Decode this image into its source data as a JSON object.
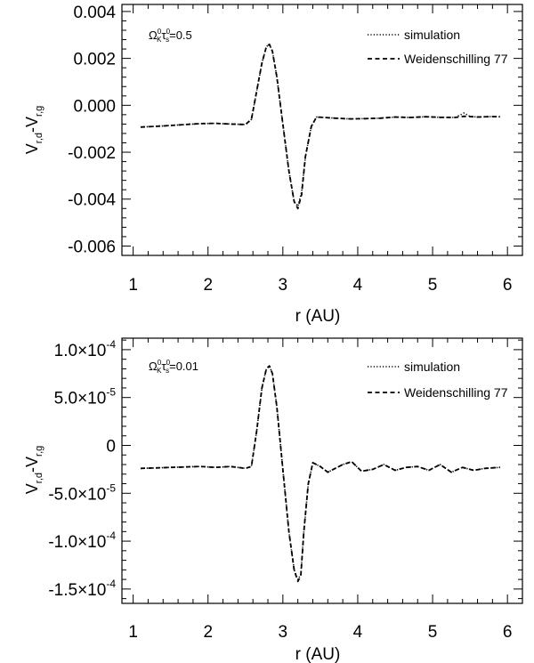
{
  "chart_data": [
    {
      "type": "line",
      "annotation": {
        "symbol_a": "Ω",
        "sup_a": "0",
        "sub_a": "K",
        "symbol_b": "τ",
        "sup_b": "0",
        "sub_b": "s",
        "value": "=0.5"
      },
      "ylabel": {
        "main_a": "V",
        "sub_a": "r,d",
        "sep": "-",
        "main_b": "V",
        "sub_b": "r,g"
      },
      "xlabel": "r (AU)",
      "xlim": [
        0.85,
        6.2
      ],
      "ylim": [
        -0.0064,
        0.0043
      ],
      "xticks": [
        1,
        2,
        3,
        4,
        5,
        6
      ],
      "xtick_labels": [
        "1",
        "2",
        "3",
        "4",
        "5",
        "6"
      ],
      "yticks": [
        -0.006,
        -0.004,
        -0.002,
        0.0,
        0.002,
        0.004
      ],
      "ytick_labels": [
        "-0.006",
        "-0.004",
        "-0.002",
        "0.000",
        "0.002",
        "0.004"
      ],
      "legend_position": "top-right",
      "series": [
        {
          "name": "simulation",
          "style": "dotted",
          "x": [
            1.1,
            1.3,
            1.5,
            1.7,
            1.9,
            2.1,
            2.3,
            2.5,
            2.58,
            2.65,
            2.72,
            2.78,
            2.82,
            2.86,
            2.92,
            3.0,
            3.08,
            3.15,
            3.2,
            3.25,
            3.3,
            3.38,
            3.45,
            3.55,
            3.7,
            3.9,
            4.1,
            4.3,
            4.5,
            4.7,
            4.9,
            5.1,
            5.3,
            5.42,
            5.5,
            5.6,
            5.8,
            5.9
          ],
          "y": [
            -0.00093,
            -0.0009,
            -0.00086,
            -0.00082,
            -0.00078,
            -0.00077,
            -0.0008,
            -0.00082,
            -0.0006,
            0.0006,
            0.0018,
            0.0025,
            0.0026,
            0.0023,
            0.0012,
            -0.0008,
            -0.0028,
            -0.0041,
            -0.0043,
            -0.0037,
            -0.0022,
            -0.0009,
            -0.0005,
            -0.00052,
            -0.00055,
            -0.00058,
            -0.00057,
            -0.00055,
            -0.0005,
            -0.00052,
            -0.00049,
            -0.00051,
            -0.00052,
            -0.00033,
            -0.00048,
            -0.0005,
            -0.00048,
            -0.00049
          ]
        },
        {
          "name": "Weidenschilling 77",
          "style": "dashed",
          "x": [
            1.1,
            1.3,
            1.5,
            1.7,
            1.9,
            2.1,
            2.3,
            2.5,
            2.58,
            2.65,
            2.72,
            2.78,
            2.82,
            2.86,
            2.92,
            3.0,
            3.08,
            3.15,
            3.2,
            3.25,
            3.3,
            3.38,
            3.45,
            3.55,
            3.7,
            3.9,
            4.1,
            4.3,
            4.5,
            4.7,
            4.9,
            5.1,
            5.3,
            5.42,
            5.5,
            5.6,
            5.8,
            5.9
          ],
          "y": [
            -0.00093,
            -0.0009,
            -0.00086,
            -0.00082,
            -0.00078,
            -0.00077,
            -0.0008,
            -0.00082,
            -0.0006,
            0.0006,
            0.0018,
            0.0025,
            0.0026,
            0.0023,
            0.0012,
            -0.0008,
            -0.0028,
            -0.0041,
            -0.0044,
            -0.0038,
            -0.0022,
            -0.0009,
            -0.0005,
            -0.00052,
            -0.00055,
            -0.00058,
            -0.00057,
            -0.00055,
            -0.0005,
            -0.00052,
            -0.00049,
            -0.00051,
            -0.00052,
            -0.00047,
            -0.00048,
            -0.0005,
            -0.00048,
            -0.00049
          ]
        }
      ]
    },
    {
      "type": "line",
      "annotation": {
        "symbol_a": "Ω",
        "sup_a": "0",
        "sub_a": "K",
        "symbol_b": "τ",
        "sup_b": "0",
        "sub_b": "s",
        "value": "=0.01"
      },
      "ylabel": {
        "main_a": "V",
        "sub_a": "r,d",
        "sep": "-",
        "main_b": "V",
        "sub_b": "r,g"
      },
      "xlabel": "r (AU)",
      "xlim": [
        0.85,
        6.2
      ],
      "ylim": [
        -0.000165,
        0.000112
      ],
      "xticks": [
        1,
        2,
        3,
        4,
        5,
        6
      ],
      "xtick_labels": [
        "1",
        "2",
        "3",
        "4",
        "5",
        "6"
      ],
      "yticks": [
        -0.00015,
        -0.0001,
        -5e-05,
        0,
        5e-05,
        0.0001
      ],
      "ytick_labels": [
        {
          "mant": "-1.5×10",
          "exp": "-4"
        },
        {
          "mant": "-1.0×10",
          "exp": "-4"
        },
        {
          "mant": "-5.0×10",
          "exp": "-5"
        },
        {
          "mant": "0",
          "exp": ""
        },
        {
          "mant": "5.0×10",
          "exp": "-5"
        },
        {
          "mant": "1.0×10",
          "exp": "-4"
        }
      ],
      "legend_position": "top-right",
      "series": [
        {
          "name": "simulation",
          "style": "dotted",
          "x": [
            1.1,
            1.3,
            1.5,
            1.7,
            1.9,
            2.1,
            2.3,
            2.5,
            2.58,
            2.65,
            2.72,
            2.78,
            2.82,
            2.86,
            2.92,
            3.0,
            3.08,
            3.15,
            3.2,
            3.24,
            3.28,
            3.34,
            3.4,
            3.5,
            3.6,
            3.7,
            3.8,
            3.92,
            4.05,
            4.2,
            4.35,
            4.5,
            4.65,
            4.8,
            4.95,
            5.1,
            5.25,
            5.4,
            5.55,
            5.7,
            5.9
          ],
          "y": [
            -2.4e-05,
            -2.35e-05,
            -2.3e-05,
            -2.25e-05,
            -2.2e-05,
            -2.3e-05,
            -2.2e-05,
            -2.4e-05,
            -2.2e-05,
            1.5e-05,
            6e-05,
            8e-05,
            8.3e-05,
            7.5e-05,
            4e-05,
            -2.5e-05,
            -9e-05,
            -0.00013,
            -0.00014,
            -0.000135,
            -9e-05,
            -4e-05,
            -1.8e-05,
            -2.2e-05,
            -2.8e-05,
            -2.4e-05,
            -2e-05,
            -1.7e-05,
            -2.7e-05,
            -2.5e-05,
            -2e-05,
            -2.6e-05,
            -2.3e-05,
            -2.2e-05,
            -2.6e-05,
            -2e-05,
            -2.8e-05,
            -2.3e-05,
            -2.6e-05,
            -2.4e-05,
            -2.3e-05
          ]
        },
        {
          "name": "Weidenschilling 77",
          "style": "dashed",
          "x": [
            1.1,
            1.3,
            1.5,
            1.7,
            1.9,
            2.1,
            2.3,
            2.5,
            2.58,
            2.65,
            2.72,
            2.78,
            2.82,
            2.86,
            2.92,
            3.0,
            3.08,
            3.15,
            3.2,
            3.24,
            3.28,
            3.34,
            3.4,
            3.5,
            3.6,
            3.7,
            3.8,
            3.92,
            4.05,
            4.2,
            4.35,
            4.5,
            4.65,
            4.8,
            4.95,
            5.1,
            5.25,
            5.4,
            5.55,
            5.7,
            5.9
          ],
          "y": [
            -2.4e-05,
            -2.35e-05,
            -2.3e-05,
            -2.25e-05,
            -2.2e-05,
            -2.3e-05,
            -2.2e-05,
            -2.4e-05,
            -2.2e-05,
            1.5e-05,
            6e-05,
            8e-05,
            8.3e-05,
            7.5e-05,
            4e-05,
            -2.5e-05,
            -9e-05,
            -0.00013,
            -0.000142,
            -0.000136,
            -9e-05,
            -4e-05,
            -1.8e-05,
            -2.2e-05,
            -2.8e-05,
            -2.4e-05,
            -2e-05,
            -1.7e-05,
            -2.7e-05,
            -2.5e-05,
            -2e-05,
            -2.6e-05,
            -2.3e-05,
            -2.2e-05,
            -2.6e-05,
            -2e-05,
            -2.8e-05,
            -2.3e-05,
            -2.6e-05,
            -2.4e-05,
            -2.3e-05
          ]
        }
      ]
    }
  ]
}
